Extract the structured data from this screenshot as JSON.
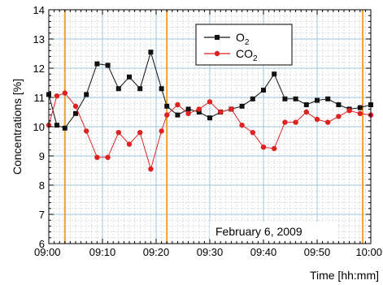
{
  "chart_data": {
    "type": "line",
    "xlabel": "Time [hh:mm]",
    "ylabel": "Concentrations [%]",
    "annotation": "February 6, 2009",
    "x_ticks": [
      "09:00",
      "09:10",
      "09:20",
      "09:30",
      "09:40",
      "09:50",
      "10:00"
    ],
    "y_ticks": [
      "6",
      "7",
      "8",
      "9",
      "10",
      "11",
      "12",
      "13",
      "14"
    ],
    "xlim_minutes": [
      0,
      60
    ],
    "ylim": [
      6,
      14
    ],
    "grid": true,
    "legend_position": "top-right",
    "legend": [
      {
        "main": "O",
        "sub": "2"
      },
      {
        "main": "CO",
        "sub": "2"
      }
    ],
    "vertical_markers_minutes": [
      3,
      22,
      58.5
    ],
    "marker_color": "#f0a030",
    "series": [
      {
        "color": "#111111",
        "marker": "square",
        "x": [
          0,
          1.5,
          3,
          5,
          7,
          9,
          11,
          13,
          15,
          17,
          19,
          21,
          22,
          24,
          26,
          28,
          30,
          32,
          34,
          36,
          38,
          40,
          42,
          44,
          46,
          48,
          50,
          52,
          54,
          56,
          58,
          60
        ],
        "y": [
          11.1,
          10.05,
          9.95,
          10.45,
          11.1,
          12.15,
          12.1,
          11.3,
          11.7,
          11.3,
          12.55,
          11.3,
          10.7,
          10.4,
          10.6,
          10.5,
          10.3,
          10.5,
          10.6,
          10.7,
          10.95,
          11.25,
          11.8,
          10.95,
          10.95,
          10.75,
          10.9,
          10.95,
          10.75,
          10.6,
          10.65,
          10.75
        ]
      },
      {
        "color": "#dd2222",
        "marker": "circle",
        "x": [
          0,
          1.5,
          3,
          5,
          7,
          9,
          11,
          13,
          15,
          17,
          19,
          21,
          22,
          24,
          26,
          28,
          30,
          32,
          34,
          36,
          38,
          40,
          42,
          44,
          46,
          48,
          50,
          52,
          54,
          56,
          58,
          60
        ],
        "y": [
          10.05,
          11.05,
          11.15,
          10.7,
          9.85,
          8.95,
          8.95,
          9.8,
          9.4,
          9.8,
          8.55,
          9.85,
          10.4,
          10.75,
          10.45,
          10.6,
          10.85,
          10.5,
          10.6,
          10.05,
          9.8,
          9.3,
          9.25,
          10.15,
          10.15,
          10.5,
          10.25,
          10.15,
          10.35,
          10.55,
          10.45,
          10.4
        ]
      }
    ]
  }
}
